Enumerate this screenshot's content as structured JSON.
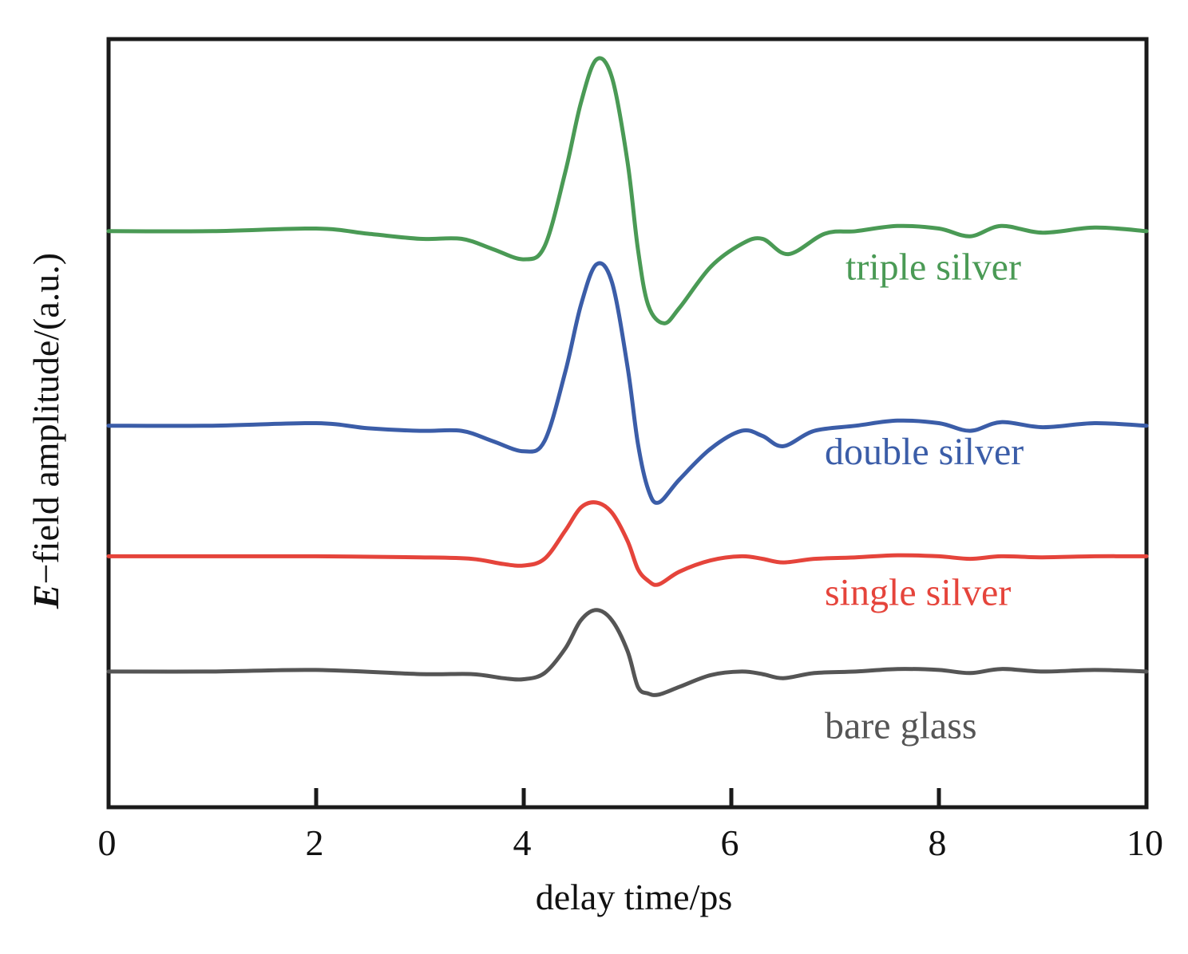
{
  "chart_data": {
    "type": "line",
    "title": "",
    "xlabel": "delay time/ps",
    "ylabel_symbol": "E",
    "ylabel_rest": "−field amplitude/(a.u.)",
    "xlim": [
      0,
      10
    ],
    "ylim": [
      -0.8,
      14.2
    ],
    "xticks": [
      0,
      2,
      4,
      6,
      8,
      10
    ],
    "grid": false,
    "legend": "inline labels beside each trace",
    "y_ticks_labeled": false,
    "series": [
      {
        "name": "bare glass",
        "color": "#555555",
        "label_anchor": [
          6.9,
          0.55
        ],
        "points": [
          [
            0,
            1.85
          ],
          [
            1,
            1.85
          ],
          [
            2,
            1.88
          ],
          [
            3,
            1.8
          ],
          [
            3.5,
            1.8
          ],
          [
            3.8,
            1.72
          ],
          [
            4.0,
            1.7
          ],
          [
            4.2,
            1.82
          ],
          [
            4.4,
            2.3
          ],
          [
            4.55,
            2.85
          ],
          [
            4.7,
            3.05
          ],
          [
            4.85,
            2.85
          ],
          [
            5.0,
            2.25
          ],
          [
            5.1,
            1.55
          ],
          [
            5.2,
            1.42
          ],
          [
            5.3,
            1.4
          ],
          [
            5.5,
            1.55
          ],
          [
            5.8,
            1.78
          ],
          [
            6.1,
            1.85
          ],
          [
            6.3,
            1.8
          ],
          [
            6.5,
            1.72
          ],
          [
            6.8,
            1.82
          ],
          [
            7.2,
            1.85
          ],
          [
            7.6,
            1.9
          ],
          [
            8.0,
            1.88
          ],
          [
            8.3,
            1.82
          ],
          [
            8.6,
            1.9
          ],
          [
            9.0,
            1.85
          ],
          [
            9.5,
            1.88
          ],
          [
            10,
            1.85
          ]
        ]
      },
      {
        "name": "single silver",
        "color": "#e5443b",
        "label_anchor": [
          6.9,
          3.15
        ],
        "points": [
          [
            0,
            4.1
          ],
          [
            1,
            4.1
          ],
          [
            2,
            4.1
          ],
          [
            3,
            4.08
          ],
          [
            3.5,
            4.05
          ],
          [
            3.8,
            3.95
          ],
          [
            4.0,
            3.92
          ],
          [
            4.2,
            4.05
          ],
          [
            4.4,
            4.6
          ],
          [
            4.55,
            5.05
          ],
          [
            4.7,
            5.15
          ],
          [
            4.85,
            4.95
          ],
          [
            5.0,
            4.4
          ],
          [
            5.1,
            3.85
          ],
          [
            5.2,
            3.62
          ],
          [
            5.3,
            3.55
          ],
          [
            5.5,
            3.8
          ],
          [
            5.8,
            4.02
          ],
          [
            6.1,
            4.1
          ],
          [
            6.3,
            4.05
          ],
          [
            6.5,
            3.98
          ],
          [
            6.8,
            4.05
          ],
          [
            7.2,
            4.08
          ],
          [
            7.6,
            4.12
          ],
          [
            8.0,
            4.1
          ],
          [
            8.3,
            4.05
          ],
          [
            8.6,
            4.1
          ],
          [
            9.0,
            4.08
          ],
          [
            9.5,
            4.1
          ],
          [
            10,
            4.1
          ]
        ]
      },
      {
        "name": "double silver",
        "color": "#3b5da8",
        "label_anchor": [
          6.9,
          5.9
        ],
        "points": [
          [
            0,
            6.65
          ],
          [
            1,
            6.65
          ],
          [
            2,
            6.7
          ],
          [
            2.5,
            6.6
          ],
          [
            3,
            6.55
          ],
          [
            3.4,
            6.55
          ],
          [
            3.7,
            6.35
          ],
          [
            4.0,
            6.15
          ],
          [
            4.2,
            6.35
          ],
          [
            4.4,
            7.7
          ],
          [
            4.55,
            9.0
          ],
          [
            4.7,
            9.8
          ],
          [
            4.85,
            9.45
          ],
          [
            5.0,
            7.8
          ],
          [
            5.1,
            6.3
          ],
          [
            5.2,
            5.4
          ],
          [
            5.3,
            5.15
          ],
          [
            5.5,
            5.6
          ],
          [
            5.8,
            6.2
          ],
          [
            6.1,
            6.55
          ],
          [
            6.3,
            6.45
          ],
          [
            6.5,
            6.25
          ],
          [
            6.8,
            6.55
          ],
          [
            7.2,
            6.65
          ],
          [
            7.6,
            6.75
          ],
          [
            8.0,
            6.7
          ],
          [
            8.3,
            6.55
          ],
          [
            8.6,
            6.72
          ],
          [
            9.0,
            6.62
          ],
          [
            9.5,
            6.7
          ],
          [
            10,
            6.65
          ]
        ]
      },
      {
        "name": "triple silver",
        "color": "#4a9a55",
        "label_anchor": [
          7.1,
          9.5
        ],
        "points": [
          [
            0,
            10.45
          ],
          [
            1,
            10.45
          ],
          [
            2,
            10.5
          ],
          [
            2.5,
            10.4
          ],
          [
            3,
            10.3
          ],
          [
            3.4,
            10.3
          ],
          [
            3.7,
            10.1
          ],
          [
            4.0,
            9.9
          ],
          [
            4.2,
            10.15
          ],
          [
            4.4,
            11.6
          ],
          [
            4.55,
            12.95
          ],
          [
            4.7,
            13.8
          ],
          [
            4.85,
            13.45
          ],
          [
            5.0,
            11.8
          ],
          [
            5.1,
            10.1
          ],
          [
            5.2,
            9.0
          ],
          [
            5.35,
            8.65
          ],
          [
            5.5,
            8.95
          ],
          [
            5.8,
            9.75
          ],
          [
            6.1,
            10.2
          ],
          [
            6.3,
            10.3
          ],
          [
            6.55,
            10.0
          ],
          [
            6.9,
            10.4
          ],
          [
            7.2,
            10.45
          ],
          [
            7.6,
            10.55
          ],
          [
            8.0,
            10.5
          ],
          [
            8.3,
            10.35
          ],
          [
            8.6,
            10.55
          ],
          [
            9.0,
            10.42
          ],
          [
            9.5,
            10.52
          ],
          [
            10,
            10.45
          ]
        ]
      }
    ]
  }
}
